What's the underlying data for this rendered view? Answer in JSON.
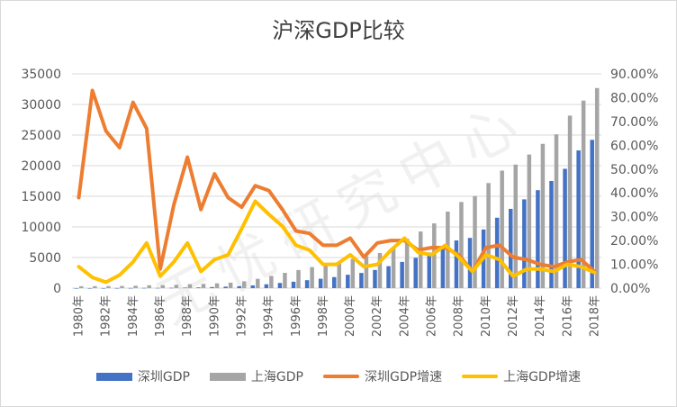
{
  "chart_data": {
    "type": "bar+line",
    "title": "沪深GDP比较",
    "categories": [
      "1980年",
      "1981年",
      "1982年",
      "1983年",
      "1984年",
      "1985年",
      "1986年",
      "1987年",
      "1988年",
      "1989年",
      "1990年",
      "1991年",
      "1992年",
      "1993年",
      "1994年",
      "1995年",
      "1996年",
      "1997年",
      "1998年",
      "1999年",
      "2000年",
      "2001年",
      "2002年",
      "2003年",
      "2004年",
      "2005年",
      "2006年",
      "2007年",
      "2008年",
      "2009年",
      "2010年",
      "2011年",
      "2012年",
      "2013年",
      "2014年",
      "2015年",
      "2016年",
      "2017年",
      "2018年"
    ],
    "xtick_labels": [
      "1980年",
      "1982年",
      "1984年",
      "1986年",
      "1988年",
      "1990年",
      "1992年",
      "1994年",
      "1996年",
      "1998年",
      "2000年",
      "2002年",
      "2004年",
      "2006年",
      "2008年",
      "2010年",
      "2012年",
      "2014年",
      "2016年",
      "2018年"
    ],
    "left_axis": {
      "min": 0,
      "max": 35000,
      "ticks": [
        "0",
        "5000",
        "10000",
        "15000",
        "20000",
        "25000",
        "30000",
        "35000"
      ]
    },
    "right_axis": {
      "min": 0,
      "max": 0.9,
      "ticks": [
        "0.00%",
        "10.00%",
        "20.00%",
        "30.00%",
        "40.00%",
        "50.00%",
        "60.00%",
        "70.00%",
        "80.00%",
        "90.00%"
      ]
    },
    "bar_series": [
      {
        "name": "深圳GDP",
        "color": "#4472c4",
        "values": [
          3,
          5,
          8,
          13,
          23,
          39,
          42,
          56,
          87,
          116,
          172,
          237,
          317,
          453,
          635,
          843,
          1048,
          1297,
          1535,
          1804,
          2187,
          2482,
          2970,
          3586,
          4282,
          4951,
          5814,
          6802,
          7787,
          8201,
          9582,
          11502,
          12950,
          14500,
          16002,
          17503,
          19493,
          22490,
          24222
        ]
      },
      {
        "name": "上海GDP",
        "color": "#a5a5a5",
        "values": [
          311,
          325,
          337,
          352,
          391,
          467,
          491,
          546,
          649,
          697,
          782,
          894,
          1114,
          1519,
          1991,
          2499,
          2958,
          3438,
          3801,
          4188,
          4771,
          5210,
          5741,
          6694,
          8072,
          9248,
          10572,
          12494,
          14070,
          15046,
          17166,
          19196,
          20182,
          21818,
          23568,
          25123,
          28179,
          30633,
          32680
        ]
      }
    ],
    "line_series": [
      {
        "name": "深圳GDP增速",
        "color": "#ed7d31",
        "values": [
          0.38,
          0.83,
          0.66,
          0.59,
          0.78,
          0.67,
          0.08,
          0.35,
          0.55,
          0.33,
          0.48,
          0.38,
          0.34,
          0.43,
          0.41,
          0.33,
          0.24,
          0.23,
          0.18,
          0.18,
          0.21,
          0.13,
          0.19,
          0.2,
          0.2,
          0.16,
          0.17,
          0.17,
          0.14,
          0.07,
          0.17,
          0.18,
          0.13,
          0.12,
          0.1,
          0.09,
          0.11,
          0.12,
          0.07
        ]
      },
      {
        "name": "上海GDP增速",
        "color": "#ffc000",
        "values": [
          0.09,
          0.045,
          0.025,
          0.055,
          0.11,
          0.19,
          0.05,
          0.11,
          0.19,
          0.07,
          0.12,
          0.14,
          0.25,
          0.365,
          0.31,
          0.26,
          0.18,
          0.16,
          0.1,
          0.1,
          0.14,
          0.09,
          0.1,
          0.16,
          0.21,
          0.15,
          0.14,
          0.18,
          0.13,
          0.07,
          0.14,
          0.12,
          0.05,
          0.08,
          0.08,
          0.07,
          0.1,
          0.09,
          0.065
        ]
      }
    ],
    "legend_position": "bottom",
    "grid": true
  },
  "legend": {
    "items": [
      {
        "label": "深圳GDP",
        "color": "#4472c4",
        "kind": "bar"
      },
      {
        "label": "上海GDP",
        "color": "#a5a5a5",
        "kind": "bar"
      },
      {
        "label": "深圳GDP增速",
        "color": "#ed7d31",
        "kind": "line"
      },
      {
        "label": "上海GDP增速",
        "color": "#ffc000",
        "kind": "line"
      }
    ]
  },
  "watermark": "无忧研究中心"
}
